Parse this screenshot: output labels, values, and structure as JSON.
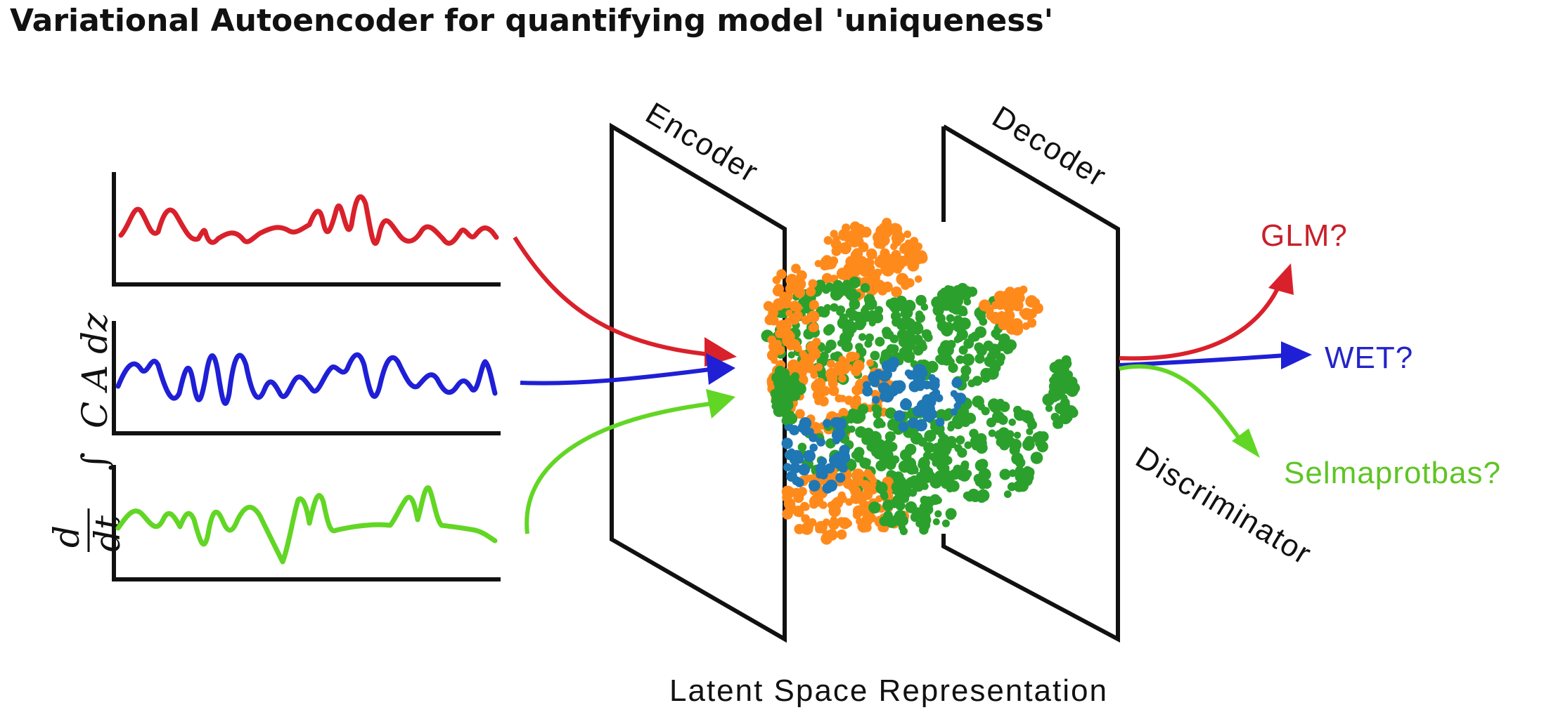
{
  "title": "Variational Autoencoder for quantifying model 'uniqueness'",
  "encoder_label": "Encoder",
  "decoder_label": "Decoder",
  "discriminator_label": "Discriminator",
  "latent_label": "Latent Space Representation",
  "equation": {
    "d": "d",
    "dt": "dt",
    "integral": "∫",
    "integrand": "C  A  dz"
  },
  "outputs": [
    {
      "label": "GLM?",
      "color": "#c8202a"
    },
    {
      "label": "WET?",
      "color": "#2424c8"
    },
    {
      "label": "Selmaprotbas?",
      "color": "#5fc424"
    }
  ],
  "colors": {
    "red_signal": "#d9212b",
    "blue_signal": "#1f1fd6",
    "green_signal": "#62d624",
    "cluster_orange": "#ff8a1c",
    "cluster_green": "#2ca02c",
    "cluster_blue": "#1f77b4"
  }
}
